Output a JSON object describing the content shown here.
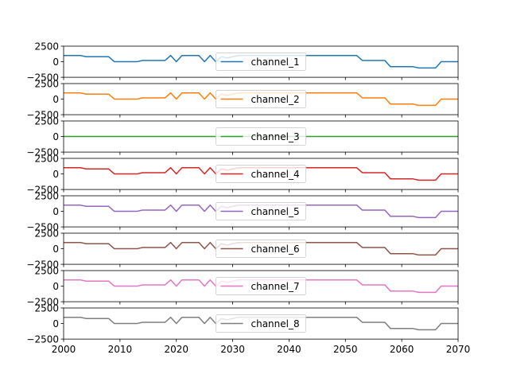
{
  "chart_data": {
    "type": "line",
    "layout": "stacked-subplots",
    "shared_x": true,
    "xlim": [
      2000,
      2070
    ],
    "ylim": [
      -2500,
      2500
    ],
    "x_ticks": [
      2000,
      2010,
      2020,
      2030,
      2040,
      2050,
      2060,
      2070
    ],
    "x_tick_labels": [
      "2000",
      "2010",
      "2020",
      "2030",
      "2040",
      "2050",
      "2060",
      "2070"
    ],
    "y_ticks": [
      2500,
      0,
      -2500
    ],
    "y_tick_labels": [
      "2500",
      "0",
      "−2500"
    ],
    "legend_placement": "center",
    "grid": false,
    "x": [
      2000,
      2001,
      2002,
      2003,
      2004,
      2005,
      2006,
      2007,
      2008,
      2009,
      2010,
      2011,
      2012,
      2013,
      2014,
      2015,
      2016,
      2017,
      2018,
      2019,
      2020,
      2021,
      2022,
      2023,
      2024,
      2025,
      2026,
      2027,
      2028,
      2029,
      2030,
      2031,
      2032,
      2033,
      2034,
      2035,
      2036,
      2037,
      2038,
      2039,
      2040,
      2041,
      2042,
      2043,
      2044,
      2045,
      2046,
      2047,
      2048,
      2049,
      2050,
      2051,
      2052,
      2053,
      2054,
      2055,
      2056,
      2057,
      2058,
      2059,
      2060,
      2061,
      2062,
      2063,
      2064,
      2065,
      2066,
      2067,
      2068,
      2069,
      2070
    ],
    "profile": [
      1000,
      1000,
      1000,
      1000,
      800,
      800,
      800,
      800,
      800,
      0,
      0,
      0,
      0,
      0,
      200,
      200,
      200,
      200,
      200,
      1000,
      0,
      1000,
      1000,
      1000,
      1000,
      0,
      1000,
      0,
      800,
      600,
      800,
      1000,
      1000,
      1000,
      1000,
      1000,
      1000,
      1000,
      1000,
      1000,
      1000,
      1000,
      1000,
      1000,
      1000,
      1000,
      1000,
      1000,
      1000,
      1000,
      1000,
      1000,
      1000,
      200,
      200,
      200,
      200,
      200,
      -800,
      -800,
      -800,
      -800,
      -800,
      -1000,
      -1000,
      -1000,
      -1000,
      0,
      0,
      0,
      0
    ],
    "series": [
      {
        "name": "channel_1",
        "color": "#1f77b4",
        "scale": 1
      },
      {
        "name": "channel_2",
        "color": "#ff7f0e",
        "scale": 1
      },
      {
        "name": "channel_3",
        "color": "#2ca02c",
        "scale": 0
      },
      {
        "name": "channel_4",
        "color": "#d62728",
        "scale": 1
      },
      {
        "name": "channel_5",
        "color": "#9467bd",
        "scale": 1
      },
      {
        "name": "channel_6",
        "color": "#8c564b",
        "scale": 1
      },
      {
        "name": "channel_7",
        "color": "#e377c2",
        "scale": 1
      },
      {
        "name": "channel_8",
        "color": "#7f7f7f",
        "scale": 1
      }
    ]
  }
}
